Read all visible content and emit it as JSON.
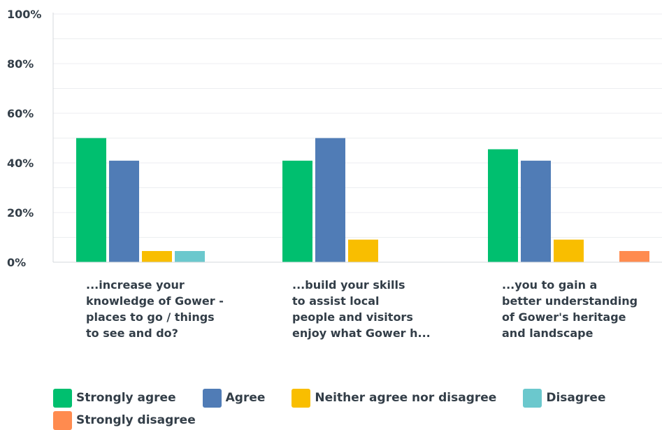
{
  "chart_data": {
    "type": "bar",
    "title": "",
    "xlabel": "",
    "ylabel": "",
    "ylim": [
      0,
      100
    ],
    "yticks": [
      "0%",
      "20%",
      "40%",
      "60%",
      "80%",
      "100%"
    ],
    "ytick_values": [
      0,
      20,
      40,
      60,
      80,
      100
    ],
    "grid": true,
    "legend_position": "bottom",
    "categories": [
      [
        "...increase your",
        "knowledge of Gower -",
        "places to go / things",
        "to see and do?"
      ],
      [
        "...build your skills",
        "to assist local",
        "people and visitors",
        "enjoy what Gower h..."
      ],
      [
        "...you to gain a",
        "better understanding",
        "of Gower's heritage",
        "and landscape"
      ]
    ],
    "series": [
      {
        "name": "Strongly agree",
        "color": "#00bf6f",
        "values": [
          50.0,
          40.9,
          45.5
        ]
      },
      {
        "name": "Agree",
        "color": "#507cb6",
        "values": [
          40.9,
          50.0,
          40.9
        ]
      },
      {
        "name": "Neither agree nor disagree",
        "color": "#f9be00",
        "values": [
          4.5,
          9.1,
          9.1
        ]
      },
      {
        "name": "Disagree",
        "color": "#6bc8cd",
        "values": [
          4.5,
          0,
          0
        ]
      },
      {
        "name": "Strongly disagree",
        "color": "#ff8b4f",
        "values": [
          0,
          0,
          4.5
        ]
      }
    ]
  }
}
